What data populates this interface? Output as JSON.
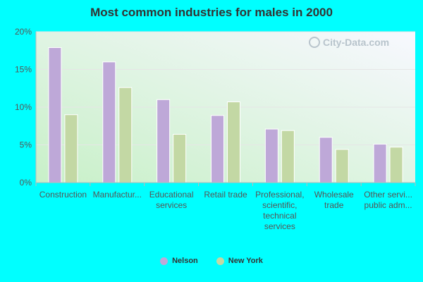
{
  "colors": {
    "background": "#00ffff",
    "nelson": "#bea8d8",
    "new_york": "#c3d8a4"
  },
  "watermark_text": "City-Data.com",
  "chart_data": {
    "type": "bar",
    "title": "Most common industries for males in 2000",
    "categories": [
      [
        "Construction"
      ],
      [
        "Manufactur..."
      ],
      [
        "Educational",
        "services"
      ],
      [
        "Retail trade"
      ],
      [
        "Professional,",
        "scientific,",
        "technical",
        "services"
      ],
      [
        "Wholesale",
        "trade"
      ],
      [
        "Other servi...",
        "public adm..."
      ]
    ],
    "series": [
      {
        "name": "Nelson",
        "values": [
          17.9,
          16.0,
          11.0,
          8.9,
          7.1,
          6.0,
          5.1
        ]
      },
      {
        "name": "New York",
        "values": [
          9.0,
          12.6,
          6.4,
          10.7,
          6.9,
          4.4,
          4.7
        ]
      }
    ],
    "yticks": [
      "0%",
      "5%",
      "10%",
      "15%",
      "20%"
    ],
    "ylim": [
      0,
      20
    ],
    "grid": true,
    "legend_position": "bottom-center"
  }
}
